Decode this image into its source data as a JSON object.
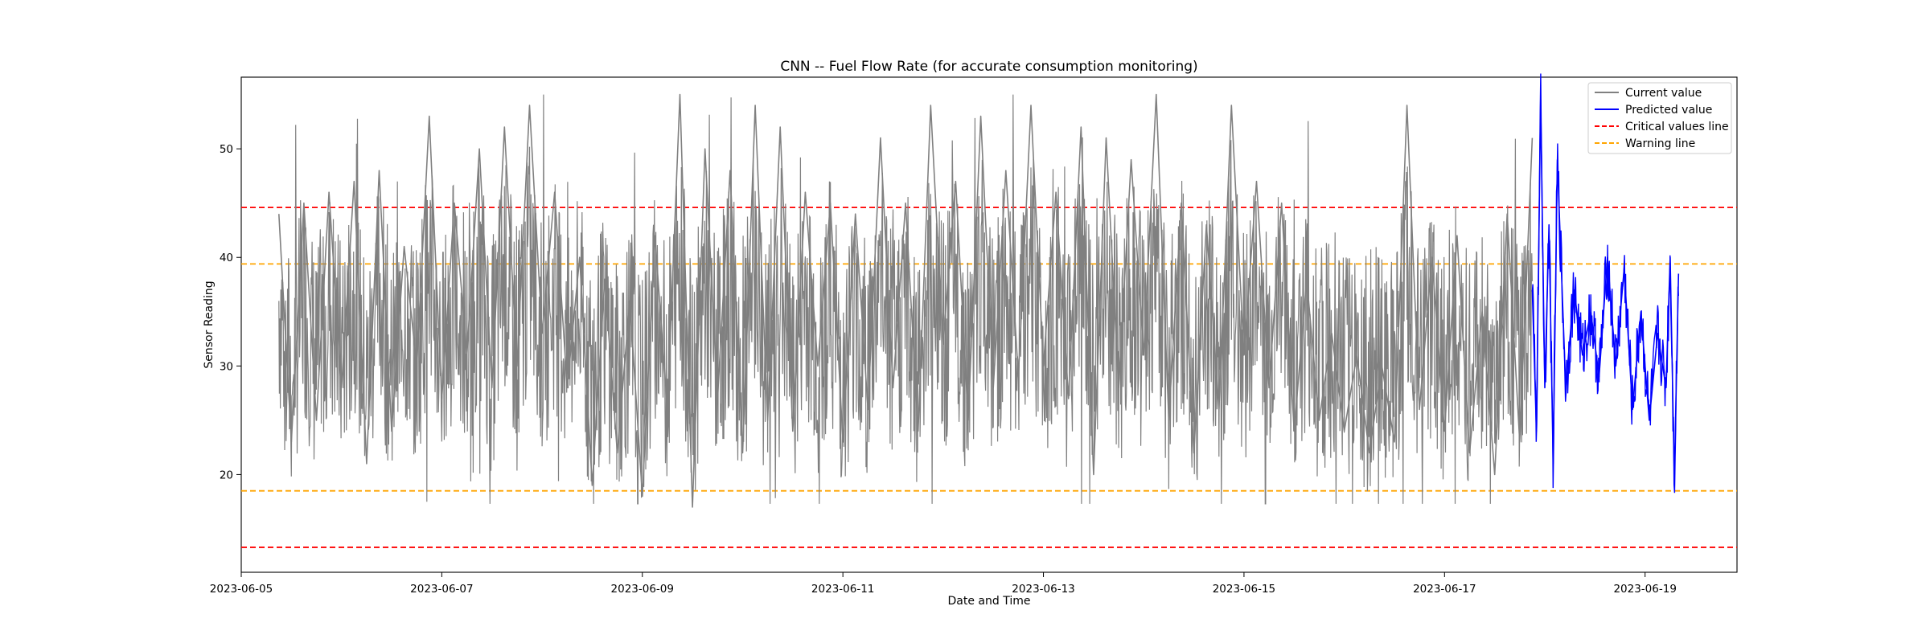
{
  "chart_data": {
    "type": "line",
    "title": "CNN -- Fuel Flow Rate (for accurate consumption monitoring)",
    "xlabel": "Date and Time",
    "ylabel": "Sensor Reading",
    "xlim": [
      "2023-06-05T00:00",
      "2023-06-19T22:00"
    ],
    "ylim": [
      11,
      56.6
    ],
    "x_ticks": [
      "2023-06-05",
      "2023-06-07",
      "2023-06-09",
      "2023-06-11",
      "2023-06-13",
      "2023-06-15",
      "2023-06-17",
      "2023-06-19"
    ],
    "y_ticks": [
      20,
      30,
      40,
      50
    ],
    "grid": false,
    "legend": {
      "position": "top-right",
      "entries": [
        "Current value",
        "Predicted value",
        "Critical values line",
        "Warning line"
      ]
    },
    "series": [
      {
        "name": "Current value",
        "color": "#808080",
        "x": [
          "2023-06-05T09:00",
          "2023-06-05T12:00",
          "2023-06-05T15:00",
          "2023-06-05T18:00",
          "2023-06-05T21:00",
          "2023-06-06T00:00",
          "2023-06-06T03:00",
          "2023-06-06T06:00",
          "2023-06-06T09:00",
          "2023-06-06T12:00",
          "2023-06-06T15:00",
          "2023-06-06T18:00",
          "2023-06-06T21:00",
          "2023-06-07T00:00",
          "2023-06-07T03:00",
          "2023-06-07T06:00",
          "2023-06-07T09:00",
          "2023-06-07T12:00",
          "2023-06-07T15:00",
          "2023-06-07T18:00",
          "2023-06-07T21:00",
          "2023-06-08T00:00",
          "2023-06-08T03:00",
          "2023-06-08T06:00",
          "2023-06-08T09:00",
          "2023-06-08T12:00",
          "2023-06-08T15:00",
          "2023-06-08T18:00",
          "2023-06-08T21:00",
          "2023-06-09T00:00",
          "2023-06-09T03:00",
          "2023-06-09T06:00",
          "2023-06-09T09:00",
          "2023-06-09T12:00",
          "2023-06-09T15:00",
          "2023-06-09T18:00",
          "2023-06-09T21:00",
          "2023-06-10T00:00",
          "2023-06-10T03:00",
          "2023-06-10T06:00",
          "2023-06-10T09:00",
          "2023-06-10T12:00",
          "2023-06-10T15:00",
          "2023-06-10T18:00",
          "2023-06-10T21:00",
          "2023-06-11T00:00",
          "2023-06-11T03:00",
          "2023-06-11T06:00",
          "2023-06-11T09:00",
          "2023-06-11T12:00",
          "2023-06-11T15:00",
          "2023-06-11T18:00",
          "2023-06-11T21:00",
          "2023-06-12T00:00",
          "2023-06-12T03:00",
          "2023-06-12T06:00",
          "2023-06-12T09:00",
          "2023-06-12T12:00",
          "2023-06-12T15:00",
          "2023-06-12T18:00",
          "2023-06-12T21:00",
          "2023-06-13T00:00",
          "2023-06-13T03:00",
          "2023-06-13T06:00",
          "2023-06-13T09:00",
          "2023-06-13T12:00",
          "2023-06-13T15:00",
          "2023-06-13T18:00",
          "2023-06-13T21:00",
          "2023-06-14T00:00",
          "2023-06-14T03:00",
          "2023-06-14T06:00",
          "2023-06-14T09:00",
          "2023-06-14T12:00",
          "2023-06-14T15:00",
          "2023-06-14T18:00",
          "2023-06-14T21:00",
          "2023-06-15T00:00",
          "2023-06-15T03:00",
          "2023-06-15T06:00",
          "2023-06-15T09:00",
          "2023-06-15T12:00",
          "2023-06-15T15:00",
          "2023-06-15T18:00",
          "2023-06-15T21:00",
          "2023-06-16T00:00",
          "2023-06-16T03:00",
          "2023-06-16T06:00",
          "2023-06-16T09:00",
          "2023-06-16T12:00",
          "2023-06-16T15:00",
          "2023-06-16T18:00",
          "2023-06-16T21:00",
          "2023-06-17T00:00",
          "2023-06-17T03:00",
          "2023-06-17T06:00",
          "2023-06-17T09:00",
          "2023-06-17T12:00",
          "2023-06-17T15:00",
          "2023-06-17T18:00",
          "2023-06-17T21:00"
        ],
        "y": [
          44,
          23,
          45,
          25,
          46,
          28,
          47,
          21,
          48,
          24,
          41,
          30,
          53,
          27,
          45,
          31,
          50,
          28,
          52,
          30,
          54,
          33,
          46,
          28,
          40,
          19,
          38,
          22,
          36,
          18,
          42,
          26,
          55,
          17,
          50,
          27,
          48,
          22,
          54,
          25,
          52,
          24,
          46,
          30,
          45,
          23,
          44,
          26,
          51,
          28,
          45,
          24,
          54,
          32,
          47,
          25,
          53,
          28,
          48,
          29,
          54,
          30,
          46,
          27,
          52,
          20,
          51,
          28,
          49,
          31,
          55,
          25,
          45,
          22,
          43,
          26,
          54,
          31,
          47,
          28,
          45,
          24,
          38,
          25,
          33,
          24,
          31,
          22,
          30,
          23,
          54,
          26,
          40,
          24,
          42,
          22,
          35,
          20,
          44,
          23,
          51
        ],
        "envelope": {
          "min": 17.3,
          "max": 55
        }
      },
      {
        "name": "Predicted value",
        "color": "#0000ff",
        "x": [
          "2023-06-17T21:00",
          "2023-06-17T22:00",
          "2023-06-17T23:00",
          "2023-06-18T00:00",
          "2023-06-18T01:00",
          "2023-06-18T02:00",
          "2023-06-18T03:00",
          "2023-06-18T05:00",
          "2023-06-18T07:00",
          "2023-06-18T09:00",
          "2023-06-18T11:00",
          "2023-06-18T13:00",
          "2023-06-18T15:00",
          "2023-06-18T17:00",
          "2023-06-18T19:00",
          "2023-06-18T21:00",
          "2023-06-18T23:00",
          "2023-06-19T01:00",
          "2023-06-19T03:00",
          "2023-06-19T05:00",
          "2023-06-19T06:00",
          "2023-06-19T07:00",
          "2023-06-19T08:00"
        ],
        "y": [
          37,
          24,
          54.5,
          28,
          43,
          21,
          49,
          28,
          37,
          31,
          35,
          29,
          40,
          30,
          39,
          26,
          35,
          25,
          33,
          28,
          40,
          19.5,
          38.5
        ]
      }
    ],
    "reference_lines": [
      {
        "label": "Critical values line",
        "y": 44.6,
        "color": "#ff0000",
        "style": "dashed"
      },
      {
        "label": "Critical values line",
        "y": 13.3,
        "color": "#ff0000",
        "style": "dashed"
      },
      {
        "label": "Warning line",
        "y": 39.4,
        "color": "#ffa500",
        "style": "dashed"
      },
      {
        "label": "Warning line",
        "y": 18.5,
        "color": "#ffa500",
        "style": "dashed"
      }
    ]
  }
}
